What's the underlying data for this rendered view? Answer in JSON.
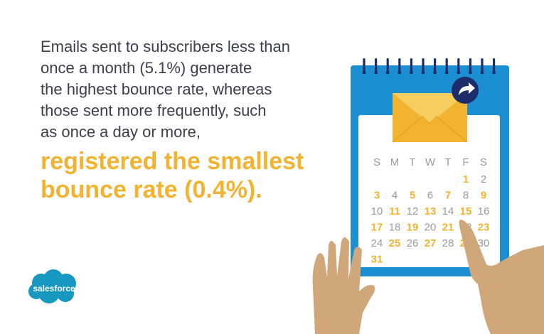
{
  "headline": {
    "lines": [
      "Emails sent to subscribers less than",
      "once a month (5.1%) generate",
      "the highest bounce rate, whereas",
      "those sent more frequently, such",
      "as once a day or more,"
    ],
    "highlight": [
      "registered the smallest",
      "bounce rate (0.4%)."
    ]
  },
  "calendar": {
    "weekdays": [
      "S",
      "M",
      "T",
      "W",
      "T",
      "F",
      "S"
    ],
    "rows": [
      [
        "",
        "",
        "",
        "",
        "",
        "1",
        "2"
      ],
      [
        "3",
        "4",
        "5",
        "6",
        "7",
        "8",
        "9"
      ],
      [
        "10",
        "11",
        "12",
        "13",
        "14",
        "15",
        "16"
      ],
      [
        "17",
        "18",
        "19",
        "20",
        "21",
        "22",
        "23"
      ],
      [
        "24",
        "25",
        "26",
        "27",
        "28",
        "29",
        "30"
      ],
      [
        "31",
        "",
        "",
        "",
        "",
        "",
        ""
      ]
    ],
    "highlighted_days": [
      "1",
      "3",
      "5",
      "7",
      "9",
      "11",
      "13",
      "15",
      "17",
      "19",
      "21",
      "23",
      "25",
      "27",
      "29",
      "31"
    ],
    "colors": {
      "frame": "#1b8fd2",
      "accent": "#f2b330",
      "muted": "#9a9a9a",
      "navy": "#1d2d6b",
      "skin": "#cfa77b"
    },
    "icons": [
      "envelope-icon",
      "forward-arrow-icon"
    ]
  },
  "brand": {
    "logo_text": "salesforce",
    "cloud_color": "#1798c1"
  }
}
